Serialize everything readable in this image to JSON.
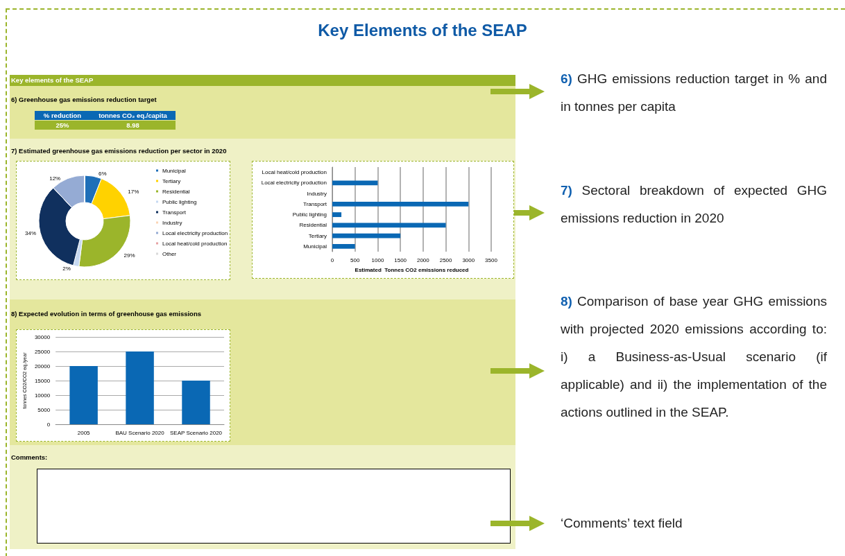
{
  "chart_data": [
    {
      "type": "other",
      "title": "Key Elements of the SEAP",
      "annotations": [
        "Key elements of the SEAP",
        "6) Greenhouse gas emissions reduction target",
        "% reduction",
        "tonnes CO₂ eq./capita",
        "25%",
        "8.98",
        "7) Estimated greenhouse gas emissions reduction per sector in 2020",
        "8) Expected evolution in terms of greenhouse gas emissions",
        "Comments:",
        "6) GHG emissions reduction target in % and in tonnes per capita",
        "7) Sectoral breakdown of expected GHG emissions reduction in 2020",
        "8) Comparison of base year GHG emissions with projected 2020 emissions according to: i) a Business-as-Usual scenario (if applicable) and ii) the implementation of the actions outlined in the SEAP.",
        "‘Comments’ text field"
      ]
    },
    {
      "type": "donut",
      "categories": [
        "Municipal",
        "Tertiary",
        "Residential",
        "Public lighting",
        "Transport",
        "Industry",
        "Local electricity production",
        "Local heat/cold production",
        "Other"
      ],
      "values": [
        6,
        17,
        29,
        2,
        34,
        0,
        12,
        0,
        0
      ],
      "value_labels": [
        "6%",
        "17%",
        "29%",
        "2%",
        "34%",
        null,
        "12%",
        null,
        null
      ],
      "colors": [
        "#1f6fb8",
        "#ffd200",
        "#9bb52b",
        "#c6d9f1",
        "#10305e",
        "#fbd4b4",
        "#95abd4",
        "#e6a2a4",
        "#d9d9d9"
      ],
      "legend": "right"
    },
    {
      "type": "bar",
      "orientation": "horizontal",
      "categories": [
        "Local heat/cold production",
        "Local electricity production",
        "Industry",
        "Transport",
        "Public lighting",
        "Residential",
        "Tertiary",
        "Municipal"
      ],
      "values": [
        0,
        1000,
        0,
        3000,
        200,
        2500,
        1500,
        500
      ],
      "color": "#0a68b4",
      "xlabel": "Estimated  Tonnes CO2 emissions reduced",
      "xlim": [
        0,
        3500
      ],
      "xticks": [
        0,
        500,
        1000,
        1500,
        2000,
        2500,
        3000,
        3500
      ],
      "grid": "x"
    },
    {
      "type": "bar",
      "categories": [
        "2005",
        "BAU Scenario 2020",
        "SEAP Scenario 2020"
      ],
      "values": [
        20000,
        25000,
        15000
      ],
      "color": "#0a68b4",
      "ylabel": "tonnes CO2/CO2 eq./year",
      "ylim": [
        0,
        30000
      ],
      "yticks": [
        0,
        5000,
        10000,
        15000,
        20000,
        25000,
        30000
      ],
      "grid": "y"
    }
  ]
}
